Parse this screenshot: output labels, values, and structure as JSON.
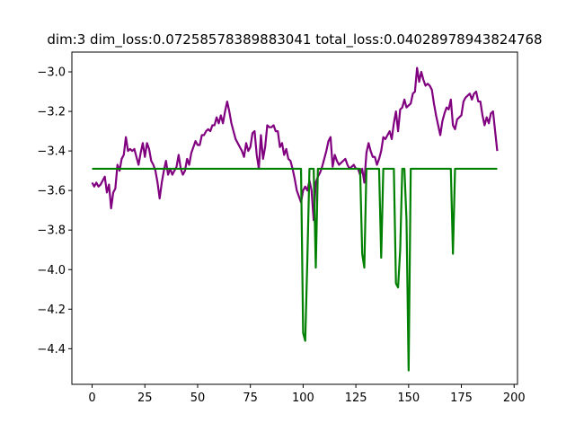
{
  "chart_data": {
    "type": "line",
    "title": "dim:3 dim_loss:0.07258578389883041 total_loss:0.04028978943824768",
    "xlim": [
      -9.6,
      201.6
    ],
    "ylim": [
      -4.58,
      -2.9
    ],
    "xticks": [
      0,
      25,
      50,
      75,
      100,
      125,
      150,
      175,
      200
    ],
    "yticks": [
      -4.4,
      -4.2,
      -4.0,
      -3.8,
      -3.6,
      -3.4,
      -3.2,
      -3.0
    ],
    "ytick_labels": [
      "−4.4",
      "−4.2",
      "−4.0",
      "−3.8",
      "−3.6",
      "−3.4",
      "−3.2",
      "−3.0"
    ],
    "grid": false,
    "series": [
      {
        "color": "#800080",
        "points": [
          [
            0,
            -3.56
          ],
          [
            1,
            -3.58
          ],
          [
            2,
            -3.56
          ],
          [
            3,
            -3.58
          ],
          [
            4,
            -3.57
          ],
          [
            5,
            -3.55
          ],
          [
            6,
            -3.53
          ],
          [
            7,
            -3.61
          ],
          [
            8,
            -3.57
          ],
          [
            9,
            -3.69
          ],
          [
            10,
            -3.61
          ],
          [
            11,
            -3.59
          ],
          [
            12,
            -3.47
          ],
          [
            13,
            -3.5
          ],
          [
            14,
            -3.44
          ],
          [
            15,
            -3.42
          ],
          [
            16,
            -3.33
          ],
          [
            17,
            -3.4
          ],
          [
            18,
            -3.39
          ],
          [
            19,
            -3.4
          ],
          [
            20,
            -3.39
          ],
          [
            21,
            -3.43
          ],
          [
            22,
            -3.47
          ],
          [
            23,
            -3.41
          ],
          [
            24,
            -3.36
          ],
          [
            25,
            -3.43
          ],
          [
            26,
            -3.36
          ],
          [
            27,
            -3.39
          ],
          [
            28,
            -3.45
          ],
          [
            29,
            -3.47
          ],
          [
            30,
            -3.5
          ],
          [
            31,
            -3.56
          ],
          [
            32,
            -3.64
          ],
          [
            33,
            -3.56
          ],
          [
            34,
            -3.5
          ],
          [
            35,
            -3.45
          ],
          [
            36,
            -3.52
          ],
          [
            37,
            -3.49
          ],
          [
            38,
            -3.52
          ],
          [
            39,
            -3.5
          ],
          [
            40,
            -3.48
          ],
          [
            41,
            -3.42
          ],
          [
            42,
            -3.49
          ],
          [
            43,
            -3.52
          ],
          [
            44,
            -3.5
          ],
          [
            45,
            -3.44
          ],
          [
            46,
            -3.47
          ],
          [
            47,
            -3.41
          ],
          [
            48,
            -3.38
          ],
          [
            49,
            -3.35
          ],
          [
            50,
            -3.37
          ],
          [
            51,
            -3.37
          ],
          [
            52,
            -3.32
          ],
          [
            53,
            -3.32
          ],
          [
            54,
            -3.3
          ],
          [
            55,
            -3.29
          ],
          [
            56,
            -3.3
          ],
          [
            57,
            -3.27
          ],
          [
            58,
            -3.27
          ],
          [
            59,
            -3.23
          ],
          [
            60,
            -3.26
          ],
          [
            61,
            -3.22
          ],
          [
            62,
            -3.26
          ],
          [
            63,
            -3.2
          ],
          [
            64,
            -3.15
          ],
          [
            65,
            -3.2
          ],
          [
            66,
            -3.26
          ],
          [
            67,
            -3.3
          ],
          [
            68,
            -3.34
          ],
          [
            69,
            -3.36
          ],
          [
            70,
            -3.38
          ],
          [
            71,
            -3.4
          ],
          [
            72,
            -3.43
          ],
          [
            73,
            -3.36
          ],
          [
            74,
            -3.4
          ],
          [
            75,
            -3.38
          ],
          [
            76,
            -3.31
          ],
          [
            77,
            -3.3
          ],
          [
            78,
            -3.42
          ],
          [
            79,
            -3.49
          ],
          [
            80,
            -3.32
          ],
          [
            81,
            -3.44
          ],
          [
            82,
            -3.38
          ],
          [
            83,
            -3.27
          ],
          [
            84,
            -3.28
          ],
          [
            85,
            -3.28
          ],
          [
            86,
            -3.27
          ],
          [
            87,
            -3.3
          ],
          [
            88,
            -3.3
          ],
          [
            89,
            -3.38
          ],
          [
            90,
            -3.36
          ],
          [
            91,
            -3.42
          ],
          [
            92,
            -3.39
          ],
          [
            93,
            -3.44
          ],
          [
            94,
            -3.45
          ],
          [
            95,
            -3.49
          ],
          [
            96,
            -3.54
          ],
          [
            97,
            -3.6
          ],
          [
            98,
            -3.63
          ],
          [
            99,
            -3.66
          ],
          [
            100,
            -3.6
          ],
          [
            101,
            -3.58
          ],
          [
            102,
            -3.6
          ],
          [
            103,
            -3.55
          ],
          [
            104,
            -3.6
          ],
          [
            105,
            -3.75
          ],
          [
            106,
            -3.56
          ],
          [
            107,
            -3.53
          ],
          [
            108,
            -3.51
          ],
          [
            109,
            -3.48
          ],
          [
            110,
            -3.44
          ],
          [
            111,
            -3.4
          ],
          [
            112,
            -3.35
          ],
          [
            113,
            -3.33
          ],
          [
            114,
            -3.48
          ],
          [
            115,
            -3.42
          ],
          [
            116,
            -3.45
          ],
          [
            117,
            -3.47
          ],
          [
            118,
            -3.46
          ],
          [
            119,
            -3.45
          ],
          [
            120,
            -3.44
          ],
          [
            121,
            -3.47
          ],
          [
            122,
            -3.49
          ],
          [
            123,
            -3.48
          ],
          [
            124,
            -3.47
          ],
          [
            125,
            -3.49
          ],
          [
            126,
            -3.49
          ],
          [
            127,
            -3.52
          ],
          [
            128,
            -3.49
          ],
          [
            129,
            -3.56
          ],
          [
            130,
            -3.41
          ],
          [
            131,
            -3.36
          ],
          [
            132,
            -3.4
          ],
          [
            133,
            -3.43
          ],
          [
            134,
            -3.43
          ],
          [
            135,
            -3.47
          ],
          [
            136,
            -3.44
          ],
          [
            137,
            -3.4
          ],
          [
            138,
            -3.33
          ],
          [
            139,
            -3.34
          ],
          [
            140,
            -3.32
          ],
          [
            141,
            -3.3
          ],
          [
            142,
            -3.34
          ],
          [
            143,
            -3.26
          ],
          [
            144,
            -3.2
          ],
          [
            145,
            -3.3
          ],
          [
            146,
            -3.19
          ],
          [
            147,
            -3.18
          ],
          [
            148,
            -3.14
          ],
          [
            149,
            -3.18
          ],
          [
            150,
            -3.17
          ],
          [
            151,
            -3.16
          ],
          [
            152,
            -3.11
          ],
          [
            153,
            -3.1
          ],
          [
            154,
            -2.98
          ],
          [
            155,
            -3.05
          ],
          [
            156,
            -3.0
          ],
          [
            157,
            -3.04
          ],
          [
            158,
            -3.07
          ],
          [
            159,
            -3.06
          ],
          [
            160,
            -3.07
          ],
          [
            161,
            -3.09
          ],
          [
            162,
            -3.16
          ],
          [
            163,
            -3.22
          ],
          [
            164,
            -3.27
          ],
          [
            165,
            -3.32
          ],
          [
            166,
            -3.25
          ],
          [
            167,
            -3.21
          ],
          [
            168,
            -3.18
          ],
          [
            169,
            -3.19
          ],
          [
            170,
            -3.14
          ],
          [
            171,
            -3.27
          ],
          [
            172,
            -3.29
          ],
          [
            173,
            -3.24
          ],
          [
            174,
            -3.23
          ],
          [
            175,
            -3.22
          ],
          [
            176,
            -3.15
          ],
          [
            177,
            -3.13
          ],
          [
            178,
            -3.12
          ],
          [
            179,
            -3.11
          ],
          [
            180,
            -3.14
          ],
          [
            181,
            -3.11
          ],
          [
            182,
            -3.1
          ],
          [
            183,
            -3.15
          ],
          [
            184,
            -3.15
          ],
          [
            185,
            -3.22
          ],
          [
            186,
            -3.27
          ],
          [
            187,
            -3.23
          ],
          [
            188,
            -3.26
          ],
          [
            189,
            -3.21
          ],
          [
            190,
            -3.2
          ],
          [
            191,
            -3.3
          ],
          [
            192,
            -3.4
          ]
        ]
      },
      {
        "color": "#008000",
        "points": [
          [
            0,
            -3.49
          ],
          [
            99,
            -3.49
          ],
          [
            100,
            -4.32
          ],
          [
            101,
            -4.36
          ],
          [
            102,
            -3.95
          ],
          [
            103,
            -3.49
          ],
          [
            105,
            -3.49
          ],
          [
            106,
            -3.99
          ],
          [
            107,
            -3.49
          ],
          [
            126,
            -3.49
          ],
          [
            127,
            -3.49
          ],
          [
            128,
            -3.92
          ],
          [
            129,
            -3.99
          ],
          [
            130,
            -3.49
          ],
          [
            136,
            -3.49
          ],
          [
            137,
            -3.94
          ],
          [
            138,
            -3.49
          ],
          [
            143,
            -3.49
          ],
          [
            144,
            -4.07
          ],
          [
            145,
            -4.09
          ],
          [
            146,
            -3.9
          ],
          [
            147,
            -3.49
          ],
          [
            148,
            -3.49
          ],
          [
            149,
            -3.75
          ],
          [
            150,
            -4.51
          ],
          [
            151,
            -3.49
          ],
          [
            170,
            -3.49
          ],
          [
            171,
            -3.92
          ],
          [
            172,
            -3.49
          ],
          [
            192,
            -3.49
          ]
        ]
      }
    ]
  }
}
